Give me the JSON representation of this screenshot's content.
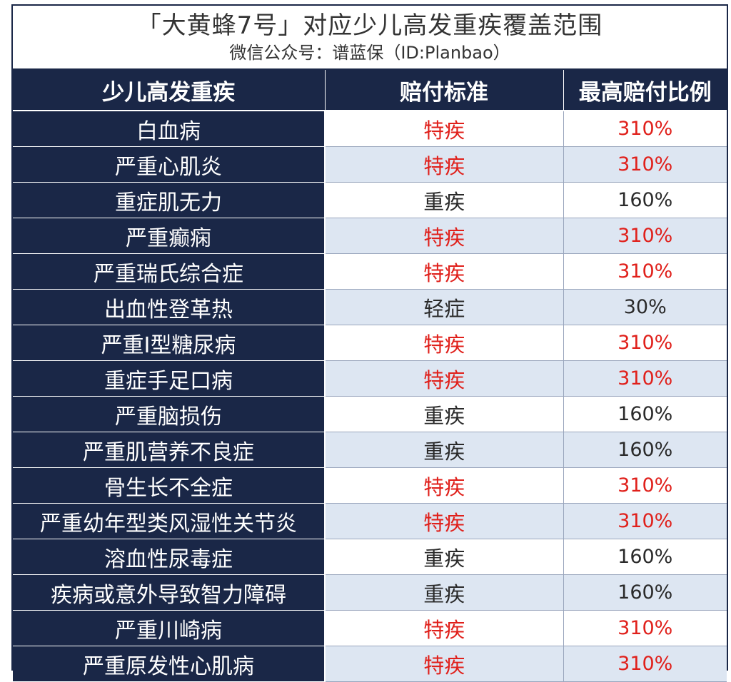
{
  "header": {
    "title": "「大黄蜂7号」对应少儿高发重疾覆盖范围",
    "subtitle": "微信公众号：谱蓝保（ID:Planbao）"
  },
  "table": {
    "columns": [
      "少儿高发重疾",
      "赔付标准",
      "最高赔付比例"
    ],
    "rows": [
      {
        "disease": "白血病",
        "standard": "特疾",
        "ratio": "310%",
        "highlight": true
      },
      {
        "disease": "严重心肌炎",
        "standard": "特疾",
        "ratio": "310%",
        "highlight": true
      },
      {
        "disease": "重症肌无力",
        "standard": "重疾",
        "ratio": "160%",
        "highlight": false
      },
      {
        "disease": "严重癫痫",
        "standard": "特疾",
        "ratio": "310%",
        "highlight": true
      },
      {
        "disease": "严重瑞氏综合症",
        "standard": "特疾",
        "ratio": "310%",
        "highlight": true
      },
      {
        "disease": "出血性登革热",
        "standard": "轻症",
        "ratio": "30%",
        "highlight": false
      },
      {
        "disease": "严重I型糖尿病",
        "standard": "特疾",
        "ratio": "310%",
        "highlight": true
      },
      {
        "disease": "重症手足口病",
        "standard": "特疾",
        "ratio": "310%",
        "highlight": true
      },
      {
        "disease": "严重脑损伤",
        "standard": "重疾",
        "ratio": "160%",
        "highlight": false
      },
      {
        "disease": "严重肌营养不良症",
        "standard": "重疾",
        "ratio": "160%",
        "highlight": false
      },
      {
        "disease": "骨生长不全症",
        "standard": "特疾",
        "ratio": "310%",
        "highlight": true
      },
      {
        "disease": "严重幼年型类风湿性关节炎",
        "standard": "特疾",
        "ratio": "310%",
        "highlight": true
      },
      {
        "disease": "溶血性尿毒症",
        "standard": "重疾",
        "ratio": "160%",
        "highlight": false
      },
      {
        "disease": "疾病或意外导致智力障碍",
        "standard": "重疾",
        "ratio": "160%",
        "highlight": false
      },
      {
        "disease": "严重川崎病",
        "standard": "特疾",
        "ratio": "310%",
        "highlight": true
      },
      {
        "disease": "严重原发性心肌病",
        "standard": "特疾",
        "ratio": "310%",
        "highlight": true
      }
    ]
  },
  "colors": {
    "navy": "#1a2747",
    "highlight_text": "#e0201b",
    "normal_text": "#2a2a2a",
    "stripe": "#dde6f2"
  }
}
